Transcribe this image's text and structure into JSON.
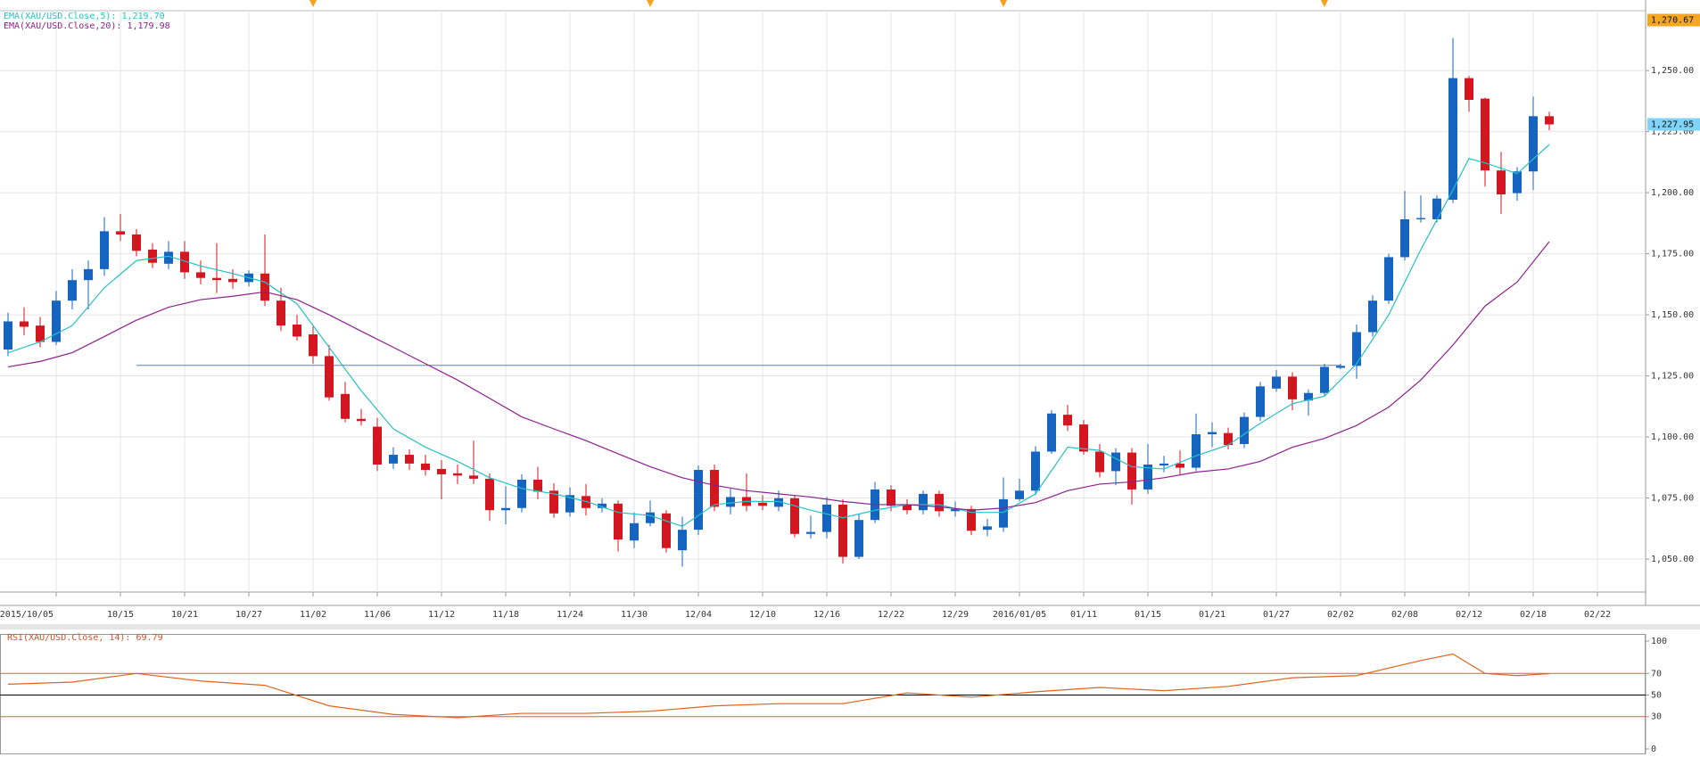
{
  "chart_data": [
    {
      "type": "candlestick",
      "categories": [
        null,
        null,
        null,
        "2015/10/05",
        null,
        null,
        null,
        "10/15",
        null,
        null,
        null,
        "10/21",
        null,
        null,
        null,
        "10/27",
        null,
        null,
        null,
        "11/02",
        null,
        null,
        null,
        "11/06",
        null,
        null,
        null,
        "11/12",
        null,
        null,
        null,
        "11/18",
        null,
        null,
        null,
        "11/24",
        null,
        null,
        null,
        "11/30",
        null,
        null,
        null,
        "12/04",
        null,
        null,
        null,
        "12/10",
        null,
        null,
        null,
        "12/16",
        null,
        null,
        null,
        "12/22",
        null,
        null,
        null,
        "12/29",
        null,
        null,
        null,
        "2016/01/05",
        null,
        null,
        null,
        "01/11",
        null,
        null,
        null,
        "01/15",
        null,
        null,
        null,
        "01/21",
        null,
        null,
        null,
        "01/27",
        null,
        null,
        null,
        "02/02",
        null,
        null,
        null,
        "02/08",
        null,
        null,
        null,
        "02/12",
        null,
        null,
        null,
        "02/18",
        null,
        null,
        null,
        "02/22"
      ],
      "open": [
        1135.8,
        1147.3,
        1145.6,
        1138.9,
        1155.8,
        1164.2,
        1168.7,
        1184.2,
        1182.9,
        1176.7,
        1170.9,
        1175.8,
        1167.4,
        1165.1,
        1164.7,
        1163.4,
        1166.9,
        1155.8,
        1146.0,
        1142.0,
        1133.1,
        1117.6,
        1107.4,
        1104.2,
        1089.1,
        1092.7,
        1089.1,
        1086.9,
        1085.1,
        1084.2,
        1082.9,
        1070.0,
        1070.9,
        1082.5,
        1078.0,
        1069.1,
        1075.8,
        1070.9,
        1072.7,
        1057.6,
        1064.7,
        1068.7,
        1053.6,
        1062.0,
        1086.5,
        1071.4,
        1075.4,
        1073.1,
        1071.4,
        1074.9,
        1060.3,
        1061.1,
        1072.3,
        1050.9,
        1066.0,
        1078.5,
        1072.3,
        1070.0,
        1076.7,
        1069.6,
        1070.5,
        1062.0,
        1062.9,
        1074.5,
        1078.0,
        1094.0,
        1109.1,
        1105.1,
        1094.0,
        1086.0,
        1093.6,
        1078.5,
        1088.3,
        1089.1,
        1087.4,
        1101.1,
        1101.6,
        1097.1,
        1108.2,
        1119.8,
        1124.7,
        1114.9,
        1118.0,
        1128.3,
        1129.1,
        1142.9,
        1155.8,
        1173.6,
        1189.1,
        1189.1,
        1197.1,
        1246.9,
        1238.5,
        1209.1,
        1199.8,
        1208.7,
        1231.3,
        null,
        null,
        null
      ],
      "high": [
        1150.9,
        1153.1,
        1149.1,
        1159.8,
        1168.7,
        1172.2,
        1190.0,
        1191.3,
        1185.1,
        1179.3,
        1180.2,
        1180.2,
        1172.2,
        1179.3,
        1168.7,
        1168.2,
        1182.9,
        1161.1,
        1150.0,
        1145.6,
        1137.6,
        1122.5,
        1111.4,
        1107.8,
        1095.8,
        1094.9,
        1092.7,
        1090.5,
        1088.7,
        1098.5,
        1085.1,
        1079.8,
        1084.7,
        1087.8,
        1081.1,
        1079.4,
        1080.7,
        1074.9,
        1074.0,
        1069.1,
        1074.0,
        1070.0,
        1067.4,
        1088.3,
        1088.7,
        1078.9,
        1085.1,
        1076.2,
        1078.0,
        1076.2,
        1067.8,
        1075.4,
        1074.5,
        1068.3,
        1081.6,
        1080.2,
        1074.5,
        1078.0,
        1078.0,
        1073.6,
        1071.8,
        1066.5,
        1083.4,
        1082.9,
        1096.2,
        1110.9,
        1113.1,
        1106.9,
        1097.1,
        1095.4,
        1095.4,
        1097.1,
        1092.3,
        1094.5,
        1109.6,
        1106.0,
        1103.8,
        1110.0,
        1122.5,
        1127.4,
        1126.5,
        1119.4,
        1130.0,
        1130.0,
        1146.0,
        1158.0,
        1174.9,
        1200.7,
        1198.9,
        1198.9,
        1263.3,
        1247.8,
        1238.9,
        1216.7,
        1210.5,
        1239.3,
        1233.1,
        null,
        null,
        null
      ],
      "low": [
        1133.1,
        1141.6,
        1136.7,
        1137.6,
        1152.2,
        1152.2,
        1166.0,
        1180.2,
        1174.0,
        1169.1,
        1168.7,
        1164.7,
        1162.5,
        1158.9,
        1160.7,
        1161.6,
        1153.6,
        1143.4,
        1139.4,
        1130.0,
        1114.9,
        1106.0,
        1104.7,
        1086.0,
        1086.9,
        1086.5,
        1084.2,
        1074.5,
        1080.7,
        1080.7,
        1065.6,
        1064.2,
        1069.1,
        1074.5,
        1066.9,
        1067.4,
        1067.8,
        1069.1,
        1053.1,
        1054.5,
        1063.4,
        1052.7,
        1046.9,
        1059.8,
        1069.6,
        1068.3,
        1069.6,
        1070.0,
        1069.6,
        1058.9,
        1058.5,
        1058.5,
        1048.2,
        1050.0,
        1064.7,
        1069.6,
        1068.3,
        1068.3,
        1067.4,
        1067.4,
        1059.8,
        1059.4,
        1061.1,
        1073.6,
        1076.2,
        1093.1,
        1102.5,
        1092.7,
        1083.4,
        1080.2,
        1072.3,
        1076.7,
        1085.6,
        1084.7,
        1086.0,
        1095.8,
        1094.9,
        1095.4,
        1106.5,
        1118.5,
        1110.9,
        1108.7,
        1116.7,
        1127.8,
        1123.8,
        1141.1,
        1154.5,
        1172.2,
        1187.8,
        1187.8,
        1195.8,
        1233.1,
        1202.5,
        1191.3,
        1196.7,
        1201.1,
        1225.5,
        null,
        null,
        null
      ],
      "close": [
        1147.3,
        1145.1,
        1138.9,
        1155.8,
        1164.2,
        1168.7,
        1184.2,
        1182.9,
        1176.2,
        1171.3,
        1175.8,
        1167.4,
        1165.1,
        1164.2,
        1163.4,
        1166.9,
        1155.8,
        1145.6,
        1141.1,
        1133.1,
        1116.2,
        1107.4,
        1106.5,
        1088.7,
        1092.7,
        1089.1,
        1086.5,
        1084.7,
        1084.2,
        1082.9,
        1070.0,
        1070.9,
        1082.5,
        1077.6,
        1068.7,
        1076.2,
        1070.9,
        1072.7,
        1058.0,
        1064.7,
        1069.1,
        1054.5,
        1062.0,
        1086.5,
        1071.4,
        1075.4,
        1071.8,
        1071.8,
        1074.9,
        1060.3,
        1061.1,
        1072.3,
        1050.9,
        1066.0,
        1078.5,
        1071.8,
        1070.0,
        1076.7,
        1069.6,
        1070.5,
        1061.6,
        1063.4,
        1074.5,
        1078.0,
        1094.0,
        1109.6,
        1104.7,
        1094.0,
        1085.6,
        1093.6,
        1078.5,
        1088.7,
        1089.1,
        1087.4,
        1101.1,
        1102.0,
        1096.7,
        1108.2,
        1120.7,
        1124.7,
        1115.4,
        1118.0,
        1128.7,
        1129.1,
        1142.9,
        1155.8,
        1173.6,
        1189.1,
        1189.6,
        1197.6,
        1246.9,
        1238.0,
        1209.1,
        1199.3,
        1208.7,
        1231.3,
        1227.95,
        null,
        null,
        null
      ],
      "up_color": "#1565c0",
      "down_color": "#d3161f",
      "overlays": [
        {
          "name": "EMA(XAU/USD.Close,5): 1,219.70",
          "color": "#26c0c8",
          "x": [
            0,
            2,
            4,
            6,
            8,
            10,
            12,
            14,
            16,
            18,
            20,
            22,
            24,
            26,
            28,
            30,
            32,
            34,
            36,
            38,
            40,
            42,
            44,
            46,
            48,
            50,
            52,
            54,
            56,
            58,
            60,
            62,
            64,
            66,
            68,
            70,
            72,
            74,
            76,
            78,
            80,
            82,
            84,
            86,
            88,
            90,
            91,
            92,
            94,
            96
          ],
          "values": [
            1134.5,
            1138.9,
            1145.6,
            1161.1,
            1172.2,
            1174.0,
            1170.0,
            1166.9,
            1163.4,
            1154.5,
            1136.7,
            1118.9,
            1103.3,
            1095.8,
            1090.0,
            1083.3,
            1078.9,
            1076.7,
            1073.6,
            1069.1,
            1067.8,
            1063.4,
            1072.3,
            1073.6,
            1073.6,
            1070.0,
            1066.9,
            1070.0,
            1072.3,
            1072.3,
            1069.1,
            1069.1,
            1076.7,
            1095.8,
            1094.5,
            1087.8,
            1086.9,
            1092.3,
            1096.7,
            1105.6,
            1113.6,
            1116.7,
            1130.0,
            1150.0,
            1176.7,
            1201.1,
            1214.0,
            1212.2,
            1207.8,
            1219.7
          ]
        },
        {
          "name": "EMA(XAU/USD.Close,20): 1,179.98",
          "color": "#8e1f8e",
          "x": [
            0,
            2,
            4,
            6,
            8,
            10,
            12,
            14,
            16,
            18,
            20,
            22,
            24,
            26,
            28,
            30,
            32,
            34,
            36,
            38,
            40,
            42,
            44,
            46,
            48,
            50,
            52,
            54,
            56,
            58,
            60,
            62,
            64,
            66,
            68,
            70,
            72,
            74,
            76,
            78,
            80,
            82,
            84,
            86,
            88,
            90,
            92,
            94,
            96
          ],
          "values": [
            1128.7,
            1130.9,
            1134.5,
            1141.1,
            1147.8,
            1153.1,
            1156.2,
            1157.6,
            1159.4,
            1156.2,
            1150.0,
            1143.3,
            1136.7,
            1130.0,
            1123.3,
            1115.8,
            1108.2,
            1103.3,
            1098.5,
            1093.1,
            1087.8,
            1083.3,
            1080.2,
            1078.0,
            1076.7,
            1075.4,
            1073.6,
            1072.3,
            1072.3,
            1071.4,
            1070.0,
            1070.9,
            1073.1,
            1078.0,
            1080.7,
            1081.6,
            1083.3,
            1085.6,
            1086.9,
            1090.0,
            1095.8,
            1099.4,
            1104.7,
            1112.2,
            1123.3,
            1137.6,
            1153.6,
            1163.4,
            1179.98
          ]
        }
      ],
      "trend_line": {
        "value": 1129.3,
        "x": [
          8,
          83
        ],
        "color": "#5b7fc0"
      },
      "event_markers": [
        19,
        40,
        62,
        82
      ],
      "event_color": "#f5a11c",
      "price_labels": [
        {
          "value": 1270.67,
          "label": "1,270.67",
          "color": "#f5a623"
        },
        {
          "value": 1227.95,
          "label": "1,227.95",
          "color": "#7fd3f7"
        }
      ],
      "xlim": [
        -0.5,
        102
      ],
      "ylim": [
        1036.5,
        1274.5
      ],
      "yticks": [
        {
          "value": 1050,
          "label": "1,050.00"
        },
        {
          "value": 1075,
          "label": "1,075.00"
        },
        {
          "value": 1100,
          "label": "1,100.00"
        },
        {
          "value": 1125,
          "label": "1,125.00"
        },
        {
          "value": 1150,
          "label": "1,150.00"
        },
        {
          "value": 1175,
          "label": "1,175.00"
        },
        {
          "value": 1200,
          "label": "1,200.00"
        },
        {
          "value": 1225,
          "label": "1,225.00"
        },
        {
          "value": 1250,
          "label": "1,250.00"
        }
      ],
      "grid": true
    },
    {
      "type": "line",
      "title": "RSI(XAU/USD.Close, 14): 69.79",
      "color": "#e0641c",
      "x": [
        0,
        4,
        8,
        12,
        16,
        20,
        24,
        28,
        32,
        36,
        40,
        44,
        48,
        52,
        56,
        60,
        64,
        68,
        72,
        76,
        80,
        84,
        88,
        90,
        92,
        94,
        96
      ],
      "values": [
        60,
        62,
        70,
        63,
        59,
        40,
        32,
        29,
        33,
        33,
        35,
        40,
        42,
        42,
        52,
        48,
        53,
        57,
        54,
        58,
        66,
        68,
        82,
        88,
        70,
        68,
        69.79
      ],
      "levels": [
        {
          "value": 70,
          "color": "#e8534a"
        },
        {
          "value": 50,
          "color": "#000000"
        },
        {
          "value": 30,
          "color": "#e8534a"
        }
      ],
      "xlim": [
        -0.5,
        102
      ],
      "ylim": [
        0,
        100
      ],
      "yticks": [
        100,
        70,
        50,
        30,
        0
      ]
    }
  ]
}
